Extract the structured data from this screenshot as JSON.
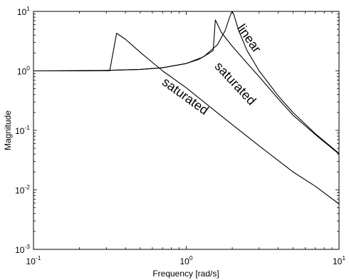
{
  "chart_data": {
    "type": "line",
    "xlabel": "Frequency [rad/s]",
    "ylabel": "Magnitude",
    "xscale": "log",
    "yscale": "log",
    "xlim": [
      0.1,
      10
    ],
    "ylim": [
      0.001,
      10
    ],
    "grid": false,
    "legend": "none",
    "x_ticks": [
      {
        "base": "10",
        "exp": "-1",
        "value": 0.1
      },
      {
        "base": "10",
        "exp": "0",
        "value": 1
      },
      {
        "base": "10",
        "exp": "1",
        "value": 10
      }
    ],
    "y_ticks": [
      {
        "base": "10",
        "exp": "-3",
        "value": 0.001
      },
      {
        "base": "10",
        "exp": "-2",
        "value": 0.01
      },
      {
        "base": "10",
        "exp": "-1",
        "value": 0.1
      },
      {
        "base": "10",
        "exp": "0",
        "value": 1
      },
      {
        "base": "10",
        "exp": "1",
        "value": 10
      }
    ],
    "series": [
      {
        "label": "linear",
        "x": [
          0.1,
          0.2,
          0.3,
          0.5,
          0.7,
          1.0,
          1.3,
          1.6,
          1.8,
          1.9,
          1.97,
          2.0,
          2.05,
          2.2,
          2.5,
          3.0,
          4.0,
          5.0,
          7.0,
          10.0
        ],
        "y": [
          1.0,
          1.0,
          1.02,
          1.06,
          1.13,
          1.33,
          1.73,
          2.75,
          4.8,
          7.3,
          9.4,
          10.0,
          8.8,
          4.8,
          2.2,
          1.0,
          0.38,
          0.2,
          0.088,
          0.041
        ]
      },
      {
        "label": "saturated",
        "x": [
          0.1,
          0.3,
          0.5,
          0.7,
          1.0,
          1.2,
          1.4,
          1.5,
          1.5,
          1.55,
          1.7,
          2.0,
          2.5,
          3.0,
          4.0,
          5.0,
          7.0,
          10.0
        ],
        "y": [
          1.0,
          1.02,
          1.06,
          1.13,
          1.33,
          1.55,
          1.95,
          2.2,
          2.2,
          7.2,
          4.4,
          2.6,
          1.35,
          0.8,
          0.34,
          0.18,
          0.085,
          0.04
        ]
      },
      {
        "label": "saturated",
        "x": [
          0.1,
          0.2,
          0.316,
          0.316,
          0.35,
          0.4,
          0.5,
          0.7,
          1.0,
          1.5,
          2.0,
          3.0,
          5.0,
          7.0,
          10.0
        ],
        "y": [
          1.0,
          1.0,
          1.01,
          1.02,
          4.3,
          3.4,
          2.05,
          1.0,
          0.52,
          0.225,
          0.125,
          0.055,
          0.02,
          0.0115,
          0.0058
        ]
      }
    ],
    "annotations": [
      {
        "text": "linear",
        "x": 2.45,
        "y": 3.2,
        "angle": 55
      },
      {
        "text": "saturated",
        "x": 2.0,
        "y": 0.55,
        "angle": 47
      },
      {
        "text": "saturated",
        "x": 0.95,
        "y": 0.33,
        "angle": 36
      }
    ]
  }
}
